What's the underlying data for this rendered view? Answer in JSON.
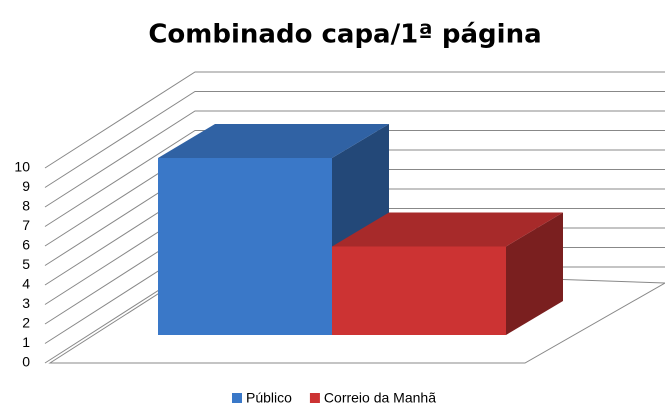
{
  "chart_data": {
    "type": "bar3d",
    "title": "Combinado capa/1ª página",
    "series": [
      {
        "name": "Público",
        "color": "#3a78c8",
        "values": [
          10
        ]
      },
      {
        "name": "Correio da Manhã",
        "color": "#cc3333",
        "values": [
          5
        ]
      }
    ],
    "ylim": [
      0,
      10
    ],
    "yticks": [
      0,
      1,
      2,
      3,
      4,
      5,
      6,
      7,
      8,
      9,
      10
    ],
    "grid": true,
    "legend": "bottom"
  }
}
